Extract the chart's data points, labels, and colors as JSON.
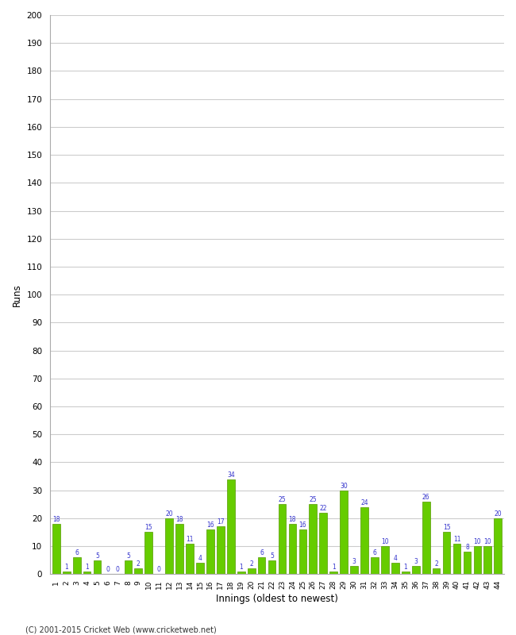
{
  "values": [
    18,
    1,
    6,
    1,
    5,
    0,
    0,
    5,
    2,
    15,
    0,
    20,
    18,
    11,
    4,
    16,
    17,
    34,
    1,
    2,
    6,
    5,
    25,
    18,
    16,
    25,
    22,
    1,
    30,
    3,
    24,
    6,
    10,
    4,
    1,
    3,
    26,
    2,
    15,
    11,
    8,
    10,
    10,
    20
  ],
  "labels": [
    "1",
    "2",
    "3",
    "4",
    "5",
    "6",
    "7",
    "8",
    "9",
    "10",
    "11",
    "12",
    "13",
    "14",
    "15",
    "16",
    "17",
    "18",
    "19",
    "20",
    "21",
    "22",
    "23",
    "24",
    "25",
    "26",
    "27",
    "28",
    "29",
    "30",
    "31",
    "32",
    "33",
    "34",
    "35",
    "36",
    "37",
    "38",
    "39",
    "40",
    "41",
    "42",
    "43",
    "44"
  ],
  "bar_color": "#66cc00",
  "bar_edge_color": "#559900",
  "label_color": "#3333cc",
  "xlabel": "Innings (oldest to newest)",
  "ylabel": "Runs",
  "ylim": [
    0,
    200
  ],
  "yticks": [
    0,
    10,
    20,
    30,
    40,
    50,
    60,
    70,
    80,
    90,
    100,
    110,
    120,
    130,
    140,
    150,
    160,
    170,
    180,
    190,
    200
  ],
  "footer": "(C) 2001-2015 Cricket Web (www.cricketweb.net)",
  "background_color": "#ffffff",
  "grid_color": "#cccccc"
}
